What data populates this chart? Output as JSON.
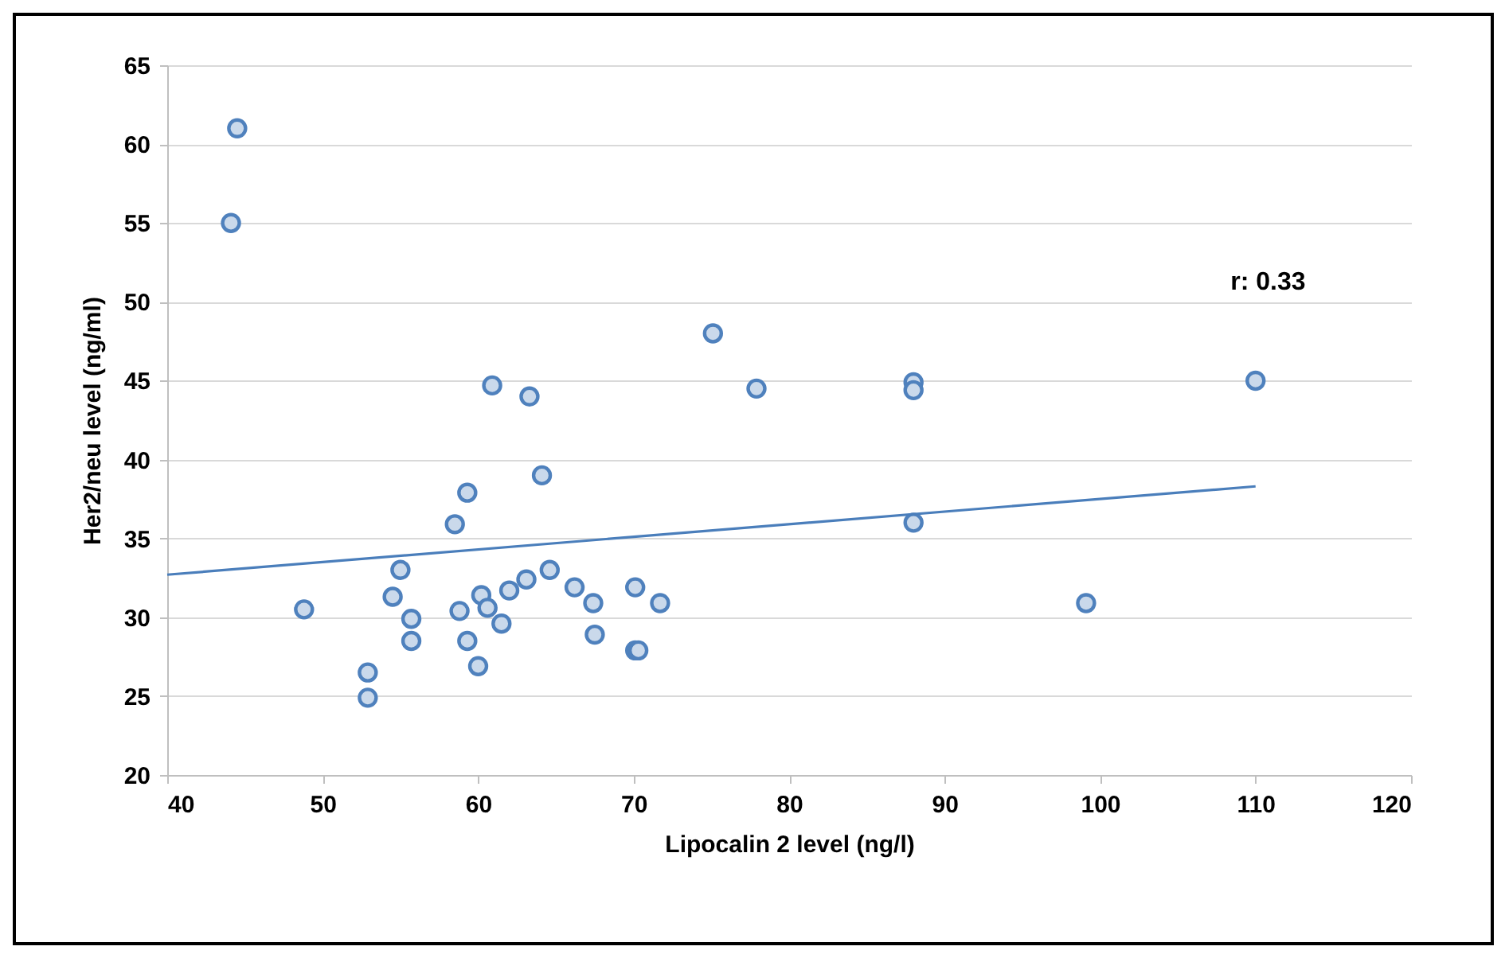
{
  "chart_data": {
    "type": "scatter",
    "xlabel": "Lipocalin 2 level (ng/l)",
    "ylabel": "Her2/neu level (ng/ml)",
    "xlim": [
      40,
      120
    ],
    "xticks": [
      40,
      50,
      60,
      70,
      80,
      90,
      100,
      110,
      120
    ],
    "ylim": [
      20,
      65
    ],
    "yticks": [
      20,
      25,
      30,
      35,
      40,
      45,
      50,
      55,
      60,
      65
    ],
    "grid": "y",
    "annotations": [
      "r: 0.33"
    ],
    "series": [
      {
        "type": "scatter",
        "marker": "circle",
        "color": "#4f81bd",
        "x": [
          44.5,
          44.1,
          60.9,
          63.3,
          75.1,
          77.9,
          64.1,
          88.0,
          88.0,
          110.0,
          88.0,
          99.1,
          59.3,
          58.5,
          55.0,
          54.5,
          55.7,
          55.7,
          52.9,
          52.9,
          58.8,
          60.2,
          60.6,
          61.5,
          59.3,
          60.0,
          62.0,
          63.1,
          64.6,
          66.2,
          67.4,
          67.5,
          70.1,
          70.3,
          71.7,
          70.1,
          48.8
        ],
        "values": [
          61.0,
          55.0,
          44.7,
          44.0,
          48.0,
          44.5,
          39.0,
          44.9,
          44.4,
          45.0,
          36.0,
          30.9,
          37.9,
          35.9,
          33.0,
          31.3,
          29.9,
          28.5,
          26.5,
          24.9,
          30.4,
          31.4,
          30.6,
          29.6,
          28.5,
          26.9,
          31.7,
          32.4,
          33.0,
          31.9,
          30.9,
          28.9,
          27.9,
          27.9,
          30.9,
          31.9,
          30.5
        ]
      },
      {
        "type": "line",
        "color": "#4a7ebb",
        "x": [
          40,
          110
        ],
        "values": [
          32.7,
          38.3
        ]
      }
    ]
  }
}
